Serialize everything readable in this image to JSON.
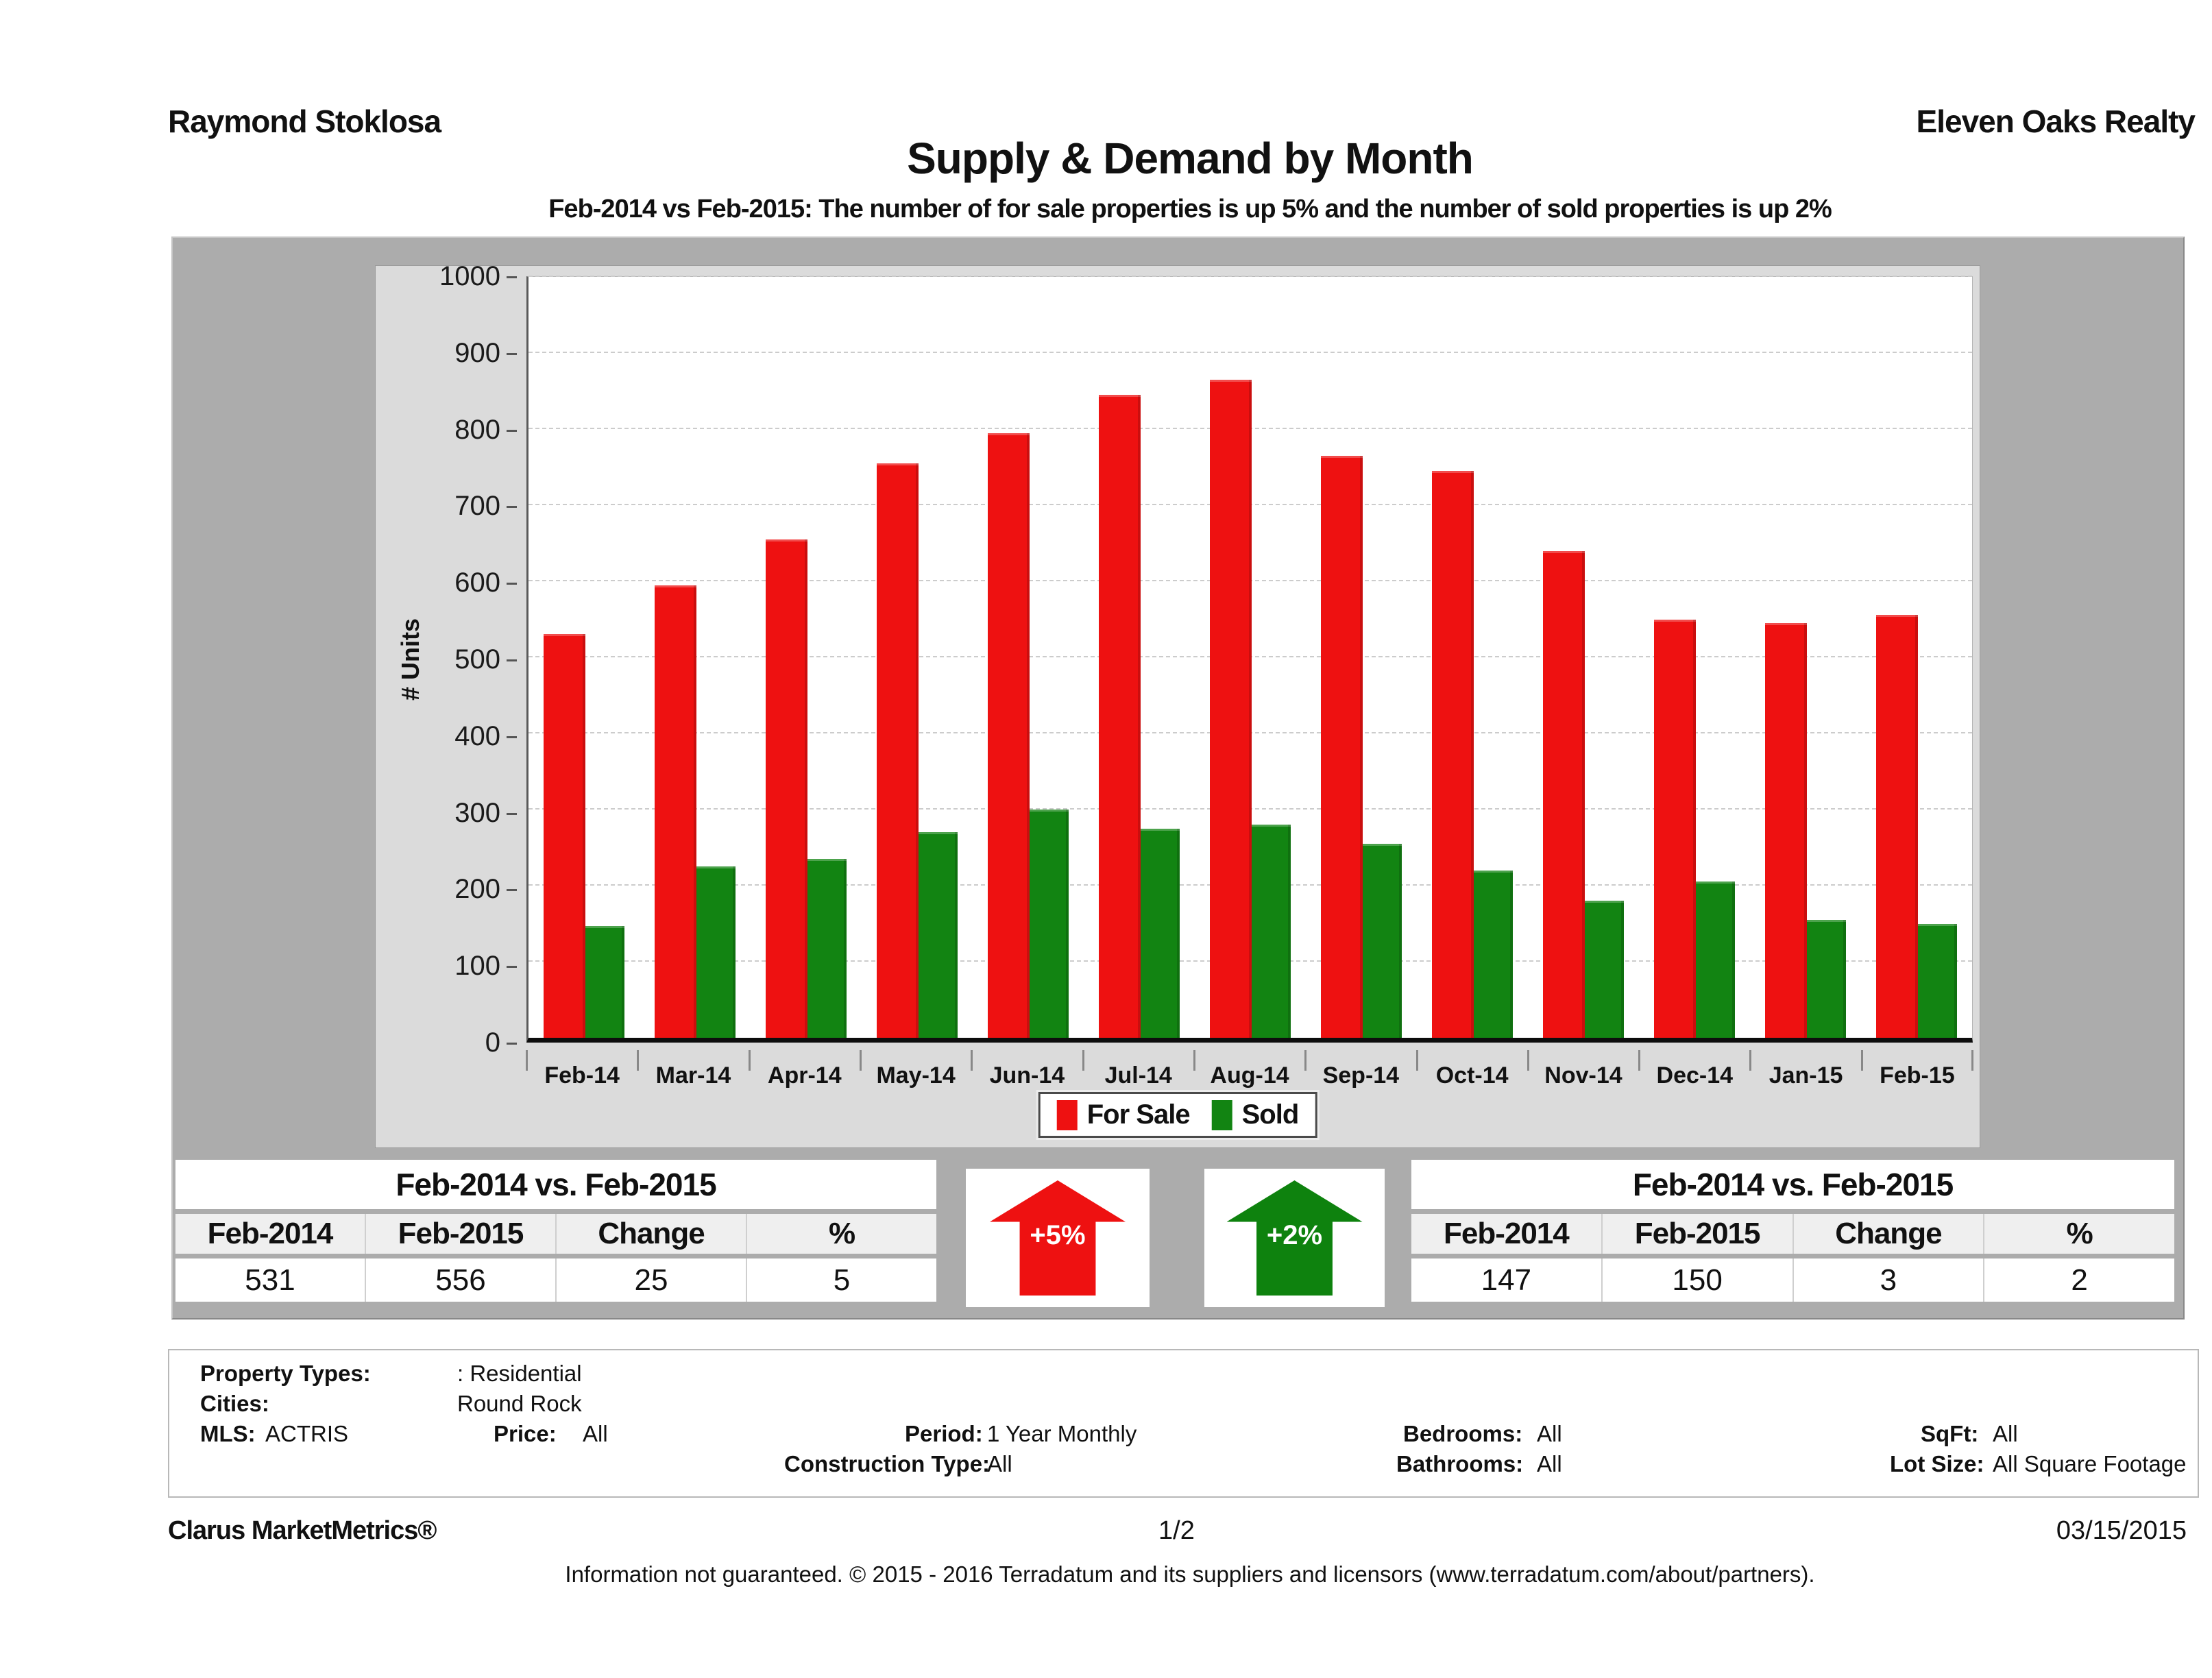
{
  "header": {
    "agent_name": "Raymond Stoklosa",
    "company_name": "Eleven Oaks Realty",
    "title": "Supply & Demand by Month",
    "subtitle": "Feb-2014 vs Feb-2015: The number of for sale properties is up 5% and the number of sold properties is up 2%"
  },
  "chart_data": {
    "type": "bar",
    "categories": [
      "Feb-14",
      "Mar-14",
      "Apr-14",
      "May-14",
      "Jun-14",
      "Jul-14",
      "Aug-14",
      "Sep-14",
      "Oct-14",
      "Nov-14",
      "Dec-14",
      "Jan-15",
      "Feb-15"
    ],
    "series": [
      {
        "name": "For Sale",
        "color": "#ee1111",
        "values": [
          531,
          595,
          655,
          755,
          795,
          845,
          865,
          765,
          745,
          640,
          550,
          545,
          556
        ]
      },
      {
        "name": "Sold",
        "color": "#128412",
        "values": [
          147,
          225,
          235,
          270,
          300,
          275,
          280,
          255,
          220,
          180,
          205,
          155,
          150
        ]
      }
    ],
    "title": "Supply & Demand by Month",
    "xlabel": "",
    "ylabel": "# Units",
    "ylim": [
      0,
      1000
    ],
    "ytick_step": 100,
    "grid": true,
    "legend_position": "bottom"
  },
  "for_sale_table": {
    "title": "Feb-2014 vs. Feb-2015",
    "columns": [
      "Feb-2014",
      "Feb-2015",
      "Change",
      "%"
    ],
    "values": [
      "531",
      "556",
      "25",
      "5"
    ]
  },
  "sold_table": {
    "title": "Feb-2014 vs. Feb-2015",
    "columns": [
      "Feb-2014",
      "Feb-2015",
      "Change",
      "%"
    ],
    "values": [
      "147",
      "150",
      "3",
      "2"
    ]
  },
  "arrows": {
    "for_sale": {
      "label": "+5%",
      "color": "#ee1111"
    },
    "sold": {
      "label": "+2%",
      "color": "#0e820e"
    }
  },
  "filters": {
    "property_types_label": "Property Types:",
    "property_types_value": ": Residential",
    "cities_label": "Cities:",
    "cities_value": "Round Rock",
    "mls_label": "MLS:",
    "mls_value": "ACTRIS",
    "price_label": "Price:",
    "price_value": "All",
    "period_label": "Period:",
    "period_value": "1 Year Monthly",
    "construction_type_label": "Construction Type:",
    "construction_type_value": "All",
    "bedrooms_label": "Bedrooms:",
    "bedrooms_value": "All",
    "bathrooms_label": "Bathrooms:",
    "bathrooms_value": "All",
    "sqft_label": "SqFt:",
    "sqft_value": "All",
    "lot_size_label": "Lot Size:",
    "lot_size_value": "All Square Footage"
  },
  "footer": {
    "product": "Clarus MarketMetrics®",
    "page": "1/2",
    "date": "03/15/2015",
    "disclaimer": "Information not guaranteed. © 2015 - 2016 Terradatum and its suppliers and licensors (www.terradatum.com/about/partners)."
  }
}
